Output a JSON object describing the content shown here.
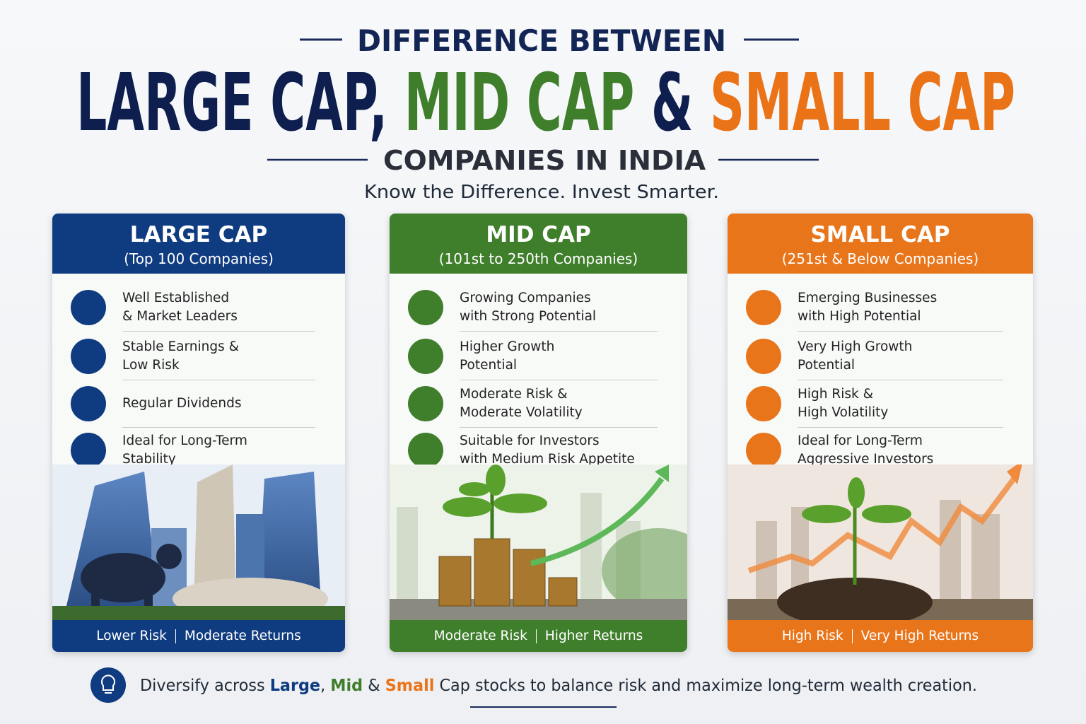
{
  "header": {
    "kicker": "DIFFERENCE BETWEEN",
    "title_large": "LARGE CAP,",
    "title_mid": "MID CAP",
    "title_amp": "&",
    "title_small": "SMALL CAP",
    "subtitle": "COMPANIES IN INDIA",
    "tagline": "Know the Difference. Invest Smarter."
  },
  "cards": [
    {
      "title": "LARGE CAP",
      "subtitle": "(Top 100 Companies)",
      "color": "#0f3b80",
      "features": [
        [
          "Well Established",
          "& Market Leaders"
        ],
        [
          "Stable Earnings &",
          "Low Risk"
        ],
        [
          "Regular Dividends"
        ],
        [
          "Ideal for Long-Term",
          "Stability"
        ]
      ],
      "footer": [
        "Lower Risk",
        "Moderate Returns"
      ]
    },
    {
      "title": "MID CAP",
      "subtitle": "(101st to 250th Companies)",
      "color": "#3f7e2b",
      "features": [
        [
          "Growing Companies",
          "with Strong Potential"
        ],
        [
          "Higher Growth",
          "Potential"
        ],
        [
          "Moderate Risk &",
          "Moderate Volatility"
        ],
        [
          "Suitable for Investors",
          "with Medium Risk Appetite"
        ]
      ],
      "footer": [
        "Moderate Risk",
        "Higher Returns"
      ]
    },
    {
      "title": "SMALL CAP",
      "subtitle": "(251st & Below Companies)",
      "color": "#e9751b",
      "features": [
        [
          "Emerging Businesses",
          "with High Potential"
        ],
        [
          "Very High Growth",
          "Potential"
        ],
        [
          "High Risk &",
          "High Volatility"
        ],
        [
          "Ideal for Long-Term",
          "Aggressive Investors"
        ]
      ],
      "footer": [
        "High Risk",
        "Very High Returns"
      ]
    }
  ],
  "footer_note": {
    "lead": "Diversify across",
    "large": "Large",
    "comma": ",",
    "mid": "Mid",
    "amp": "&",
    "small": "Small",
    "rest": "Cap stocks to balance risk and maximize long-term wealth creation."
  }
}
